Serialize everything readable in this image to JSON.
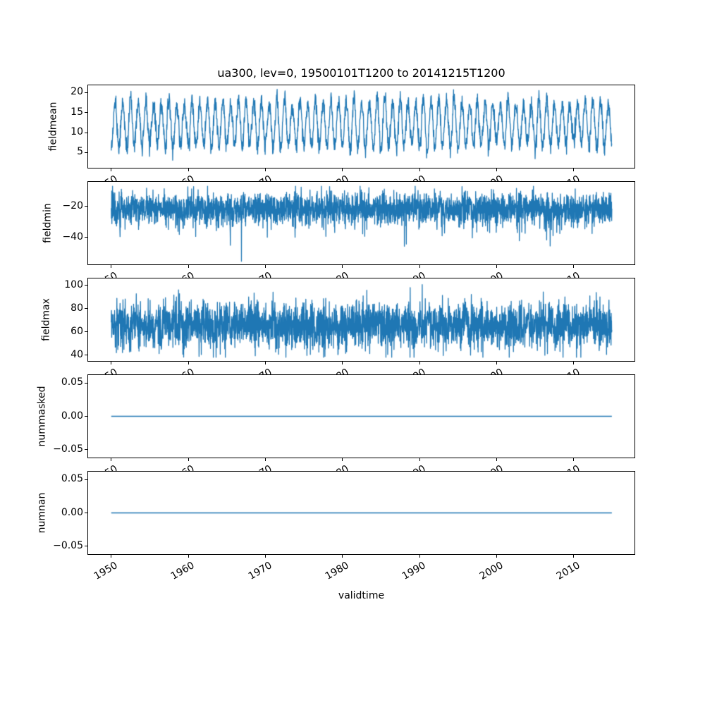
{
  "chart_data": {
    "type": "line",
    "title": "ua300, lev=0, 19500101T1200 to 20141215T1200",
    "xlabel": "validtime",
    "line_color": "#1f77b4",
    "frame_color": "#000000",
    "background_color": "#ffffff",
    "x_axis": {
      "tick_values": [
        1950,
        1960,
        1970,
        1980,
        1990,
        2000,
        2010
      ],
      "tick_labels": [
        "1950",
        "1960",
        "1970",
        "1980",
        "1990",
        "2000",
        "2010"
      ],
      "tick_label_rotation_deg": 30,
      "xlim": [
        1947.0,
        2017.9
      ],
      "data_start": 1950.0,
      "data_end": 2014.96
    },
    "subplots": [
      {
        "ylabel": "fieldmean",
        "ytick_values": [
          5,
          10,
          15,
          20
        ],
        "ytick_labels": [
          "5",
          "10",
          "15",
          "20"
        ],
        "ylim": [
          1.2,
          21.8
        ],
        "data_summary": {
          "min": 2.2,
          "max": 20.8,
          "pattern": "annual cycle, mid-year peaks ~17-20.8, troughs ~3-8",
          "annual_cycle_samples": [
            6.5,
            5.2,
            6.8,
            9.5,
            12.8,
            16.2,
            18.6,
            18.9,
            16.8,
            13.5,
            10.0,
            7.4
          ]
        },
        "synthesis": {
          "kind": "seasonal",
          "seed": 11,
          "points_per_year": 36,
          "base": 12.1,
          "amp_min": 4.6,
          "amp_var": 1.9,
          "noise_sd": 1.15,
          "clamp": [
            2.2,
            20.8
          ],
          "phase": "mid-year-peak"
        }
      },
      {
        "ylabel": "fieldmin",
        "ytick_values": [
          -20,
          -40
        ],
        "ytick_labels": [
          "−20",
          "−40"
        ],
        "ylim": [
          -57.5,
          -4.0
        ],
        "data_summary": {
          "min": -55.5,
          "max": -6.8,
          "pattern": "dense noise band around -21, frequent spikes to -45, one extreme spike near 1967",
          "extreme_point": {
            "x": 1966.9,
            "y": -55.5
          }
        },
        "synthesis": {
          "kind": "noise",
          "seed": 22,
          "points_per_year": 48,
          "center": -21.5,
          "sd": 5.2,
          "annual_amp": 0,
          "spike_prob": 0.02,
          "spike_min": 4,
          "spike_var": 14,
          "spike_sign": -1,
          "clamp": [
            -55.5,
            -6.8
          ],
          "extreme": {
            "t": 1966.9,
            "v": -55.5
          }
        }
      },
      {
        "ylabel": "fieldmax",
        "ytick_values": [
          40,
          60,
          80,
          100
        ],
        "ytick_labels": [
          "40",
          "60",
          "80",
          "100"
        ],
        "ylim": [
          35.0,
          106.0
        ],
        "data_summary": {
          "min": 38.2,
          "max": 101.5,
          "pattern": "dense noise band around 65, excursions ~40 to ~100"
        },
        "synthesis": {
          "kind": "noise",
          "seed": 33,
          "points_per_year": 48,
          "center": 65.5,
          "sd": 9.8,
          "annual_amp": 3.5,
          "spike_prob": 0,
          "spike_min": 0,
          "spike_var": 0,
          "spike_sign": 1,
          "clamp": [
            38.2,
            101.5
          ],
          "extreme": null
        }
      },
      {
        "ylabel": "nummasked",
        "ytick_values": [
          -0.05,
          0.0,
          0.05
        ],
        "ytick_labels": [
          "−0.05",
          "0.00",
          "0.05"
        ],
        "ylim": [
          -0.062,
          0.062
        ],
        "data_summary": {
          "constant_value": 0.0,
          "pattern": "flat line at 0"
        },
        "synthesis": {
          "kind": "constant",
          "value": 0.0
        }
      },
      {
        "ylabel": "numnan",
        "ytick_values": [
          -0.05,
          0.0,
          0.05
        ],
        "ytick_labels": [
          "−0.05",
          "0.00",
          "0.05"
        ],
        "ylim": [
          -0.062,
          0.062
        ],
        "data_summary": {
          "constant_value": 0.0,
          "pattern": "flat line at 0"
        },
        "synthesis": {
          "kind": "constant",
          "value": 0.0
        }
      }
    ]
  }
}
